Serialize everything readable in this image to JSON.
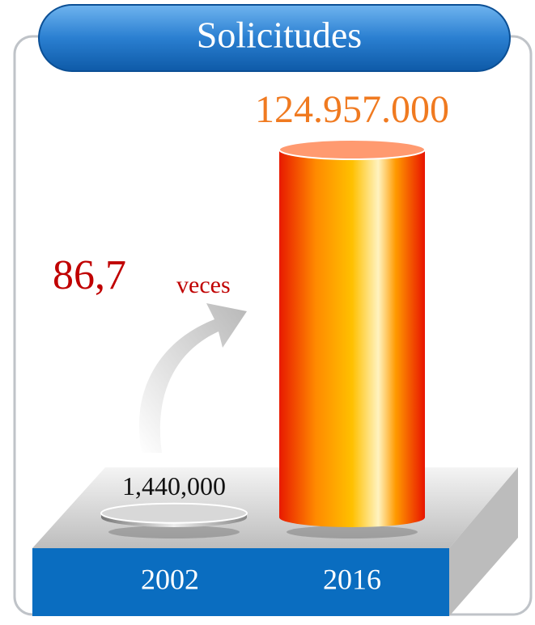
{
  "chart_data": {
    "type": "bar",
    "title": "Solicitudes",
    "categories": [
      "2002",
      "2016"
    ],
    "values": [
      1440000,
      124957000
    ],
    "value_labels": [
      "1,440,000",
      "124.957.000"
    ],
    "value_label_colors": [
      "#111111",
      "#f07a20"
    ],
    "annotation": {
      "number": "86,7",
      "unit": "veces"
    }
  }
}
